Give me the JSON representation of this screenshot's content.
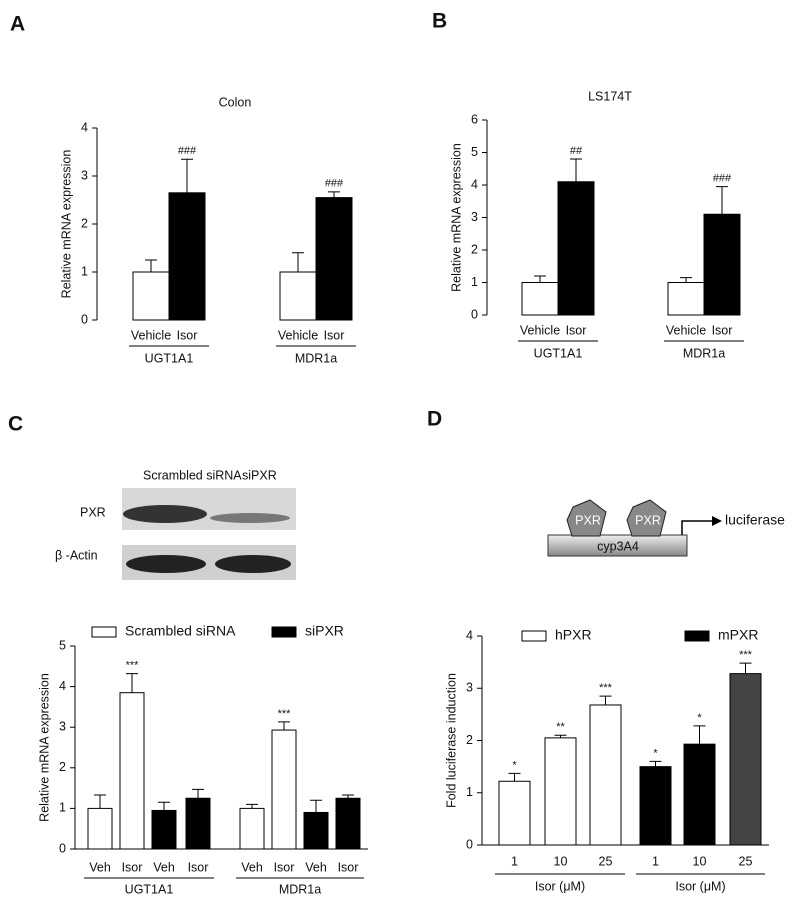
{
  "chart_data": [
    {
      "type": "bar",
      "panel": "A",
      "title": "Colon",
      "y_label": "Relative mRNA expression",
      "categories": [
        "Vehicle",
        "Isor",
        "Vehicle",
        "Isor"
      ],
      "values": [
        1,
        2.65,
        1,
        2.55
      ],
      "errors": [
        0.25,
        0.7,
        0.4,
        0.12
      ],
      "colors": [
        "#ffffff",
        "#000000",
        "#ffffff",
        "#000000"
      ],
      "annotations": [
        null,
        "###",
        null,
        "###"
      ],
      "groups": [
        "UGT1A1",
        "MDR1a"
      ],
      "ylim": [
        0,
        4
      ],
      "yticks": [
        0,
        1,
        2,
        3,
        4
      ]
    },
    {
      "type": "bar",
      "panel": "B",
      "title": "LS174T",
      "y_label": "Relative  mRNA expression",
      "categories": [
        "Vehicle",
        "Isor",
        "Vehicle",
        "Isor"
      ],
      "values": [
        1,
        4.1,
        1,
        3.1
      ],
      "errors": [
        0.2,
        0.7,
        0.15,
        0.85
      ],
      "colors": [
        "#ffffff",
        "#000000",
        "#ffffff",
        "#000000"
      ],
      "annotations": [
        null,
        "##",
        null,
        "###"
      ],
      "groups": [
        "UGT1A1",
        "MDR1a"
      ],
      "ylim": [
        0,
        6
      ],
      "yticks": [
        0,
        1,
        2,
        3,
        4,
        5,
        6
      ]
    },
    {
      "type": "bar",
      "panel": "C",
      "y_label": "Relative  mRNA expression",
      "legend": [
        {
          "name": "Scrambled siRNA",
          "color": "#ffffff"
        },
        {
          "name": "siPXR",
          "color": "#000000"
        }
      ],
      "categories": [
        "Veh",
        "Isor",
        "Veh",
        "Isor",
        "Veh",
        "Isor",
        "Veh",
        "Isor"
      ],
      "values": [
        1,
        3.85,
        0.95,
        1.25,
        1,
        2.93,
        0.9,
        1.25
      ],
      "errors": [
        0.33,
        0.47,
        0.2,
        0.22,
        0.1,
        0.2,
        0.3,
        0.08
      ],
      "colors": [
        "#ffffff",
        "#ffffff",
        "#000000",
        "#000000",
        "#ffffff",
        "#ffffff",
        "#000000",
        "#000000"
      ],
      "annotations": [
        null,
        "***",
        null,
        null,
        null,
        "***",
        null,
        null
      ],
      "groups": [
        "UGT1A1",
        "MDR1a"
      ],
      "ylim": [
        0,
        5
      ],
      "yticks": [
        0,
        1,
        2,
        3,
        4,
        5
      ]
    },
    {
      "type": "bar",
      "panel": "D",
      "y_label": "Fold luciferase induction",
      "legend": [
        {
          "name": "hPXR",
          "color": "#ffffff"
        },
        {
          "name": "mPXR",
          "color": "#000000"
        }
      ],
      "categories": [
        "1",
        "10",
        "25",
        "1",
        "10",
        "25"
      ],
      "values": [
        1.22,
        2.05,
        2.68,
        1.5,
        1.93,
        3.28
      ],
      "errors": [
        0.15,
        0.05,
        0.17,
        0.1,
        0.35,
        0.2
      ],
      "colors": [
        "#ffffff",
        "#ffffff",
        "#ffffff",
        "#000000",
        "#000000",
        "#444444"
      ],
      "annotations": [
        "*",
        "**",
        "***",
        "*",
        "*",
        "***"
      ],
      "groups": [
        "Isor (μM)",
        "Isor (μM)"
      ],
      "ylim": [
        0,
        4
      ],
      "yticks": [
        0,
        1,
        2,
        3,
        4
      ]
    }
  ],
  "blot": {
    "lanes": [
      "Scrambled siRNA",
      "siPXR"
    ],
    "rows": [
      "PXR",
      "β -Actin"
    ]
  },
  "diagram": {
    "proteins": [
      "PXR",
      "PXR"
    ],
    "promoter": "cyp3A4",
    "reporter": "luciferase"
  }
}
